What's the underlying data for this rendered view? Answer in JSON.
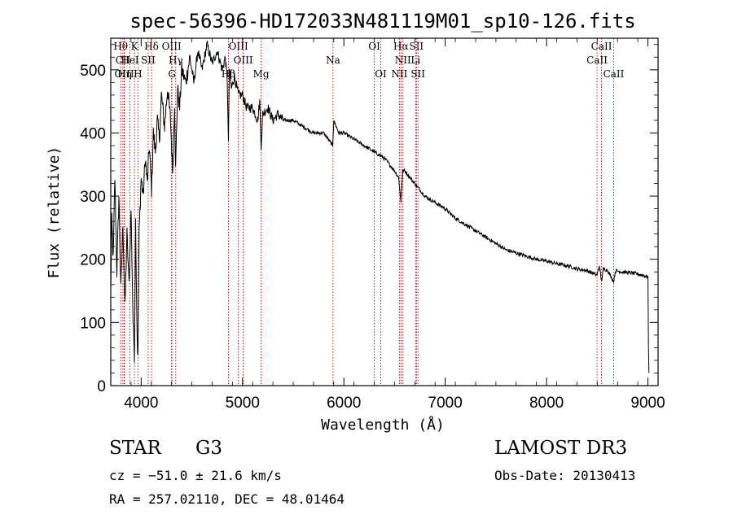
{
  "chart_data": {
    "type": "line",
    "title": "spec-56396-HD172033N481119M01_sp10-126.fits",
    "xlabel": "Wavelength (Å)",
    "ylabel": "Flux (relative)",
    "xlim": [
      3700,
      9100
    ],
    "ylim": [
      0,
      550
    ],
    "xticks": [
      4000,
      5000,
      6000,
      7000,
      8000,
      9000
    ],
    "yticks": [
      0,
      100,
      200,
      300,
      400,
      500
    ],
    "series": [
      {
        "name": "flux",
        "x": [
          3700,
          3710,
          3725,
          3740,
          3760,
          3780,
          3800,
          3820,
          3840,
          3860,
          3880,
          3900,
          3920,
          3933,
          3945,
          3960,
          3968,
          3980,
          4000,
          4020,
          4040,
          4060,
          4080,
          4102,
          4120,
          4140,
          4160,
          4180,
          4200,
          4230,
          4260,
          4290,
          4310,
          4330,
          4340,
          4360,
          4380,
          4400,
          4440,
          4480,
          4520,
          4560,
          4600,
          4650,
          4700,
          4750,
          4800,
          4830,
          4850,
          4861,
          4870,
          4890,
          4920,
          4960,
          5000,
          5040,
          5100,
          5150,
          5170,
          5183,
          5200,
          5250,
          5300,
          5350,
          5400,
          5500,
          5600,
          5700,
          5800,
          5890,
          5900,
          5950,
          6000,
          6100,
          6200,
          6300,
          6400,
          6500,
          6540,
          6563,
          6580,
          6600,
          6650,
          6700,
          6800,
          6900,
          7000,
          7100,
          7200,
          7300,
          7400,
          7500,
          7600,
          7700,
          7800,
          7900,
          8000,
          8100,
          8200,
          8300,
          8400,
          8498,
          8520,
          8542,
          8560,
          8600,
          8662,
          8680,
          8750,
          8850,
          8950,
          9000,
          9005,
          9010
        ],
        "y": [
          150,
          260,
          200,
          330,
          180,
          300,
          150,
          260,
          120,
          240,
          160,
          280,
          100,
          50,
          260,
          80,
          40,
          240,
          330,
          300,
          360,
          320,
          380,
          310,
          400,
          370,
          420,
          390,
          460,
          410,
          470,
          420,
          340,
          450,
          340,
          470,
          440,
          500,
          480,
          520,
          480,
          530,
          500,
          540,
          510,
          530,
          500,
          520,
          480,
          380,
          500,
          470,
          490,
          460,
          460,
          440,
          440,
          420,
          450,
          380,
          430,
          440,
          420,
          430,
          420,
          420,
          410,
          400,
          400,
          380,
          420,
          400,
          400,
          390,
          380,
          370,
          360,
          340,
          330,
          290,
          340,
          340,
          330,
          320,
          300,
          290,
          280,
          265,
          255,
          245,
          235,
          225,
          215,
          210,
          205,
          200,
          197,
          193,
          190,
          185,
          182,
          175,
          190,
          165,
          185,
          183,
          165,
          182,
          180,
          178,
          175,
          172,
          60,
          20
        ]
      }
    ],
    "line_markers": [
      {
        "label": "Hθ",
        "w": 3798,
        "row": 1
      },
      {
        "label": "CII",
        "w": 3820,
        "row": 2
      },
      {
        "label": "OIII",
        "w": 3833,
        "row": 3
      },
      {
        "label": "Hη",
        "w": 3836,
        "row": 3
      },
      {
        "label": "HeI",
        "w": 3889,
        "row": 2
      },
      {
        "label": "K",
        "w": 3934,
        "row": 1
      },
      {
        "label": "H",
        "w": 3968,
        "row": 3
      },
      {
        "label": "SII",
        "w": 4069,
        "row": 2
      },
      {
        "label": "Hδ",
        "w": 4102,
        "row": 1
      },
      {
        "label": "OIII",
        "w": 4300,
        "row": 1
      },
      {
        "label": "Hγ",
        "w": 4341,
        "row": 2
      },
      {
        "label": "G",
        "w": 4304,
        "row": 3
      },
      {
        "label": "Hβ",
        "w": 4861,
        "row": 3
      },
      {
        "label": "OIII",
        "w": 4959,
        "row": 1
      },
      {
        "label": "OIII",
        "w": 5007,
        "row": 2
      },
      {
        "label": "Mg",
        "w": 5183,
        "row": 3
      },
      {
        "label": "Na",
        "w": 5893,
        "row": 2
      },
      {
        "label": "OI",
        "w": 6300,
        "row": 1
      },
      {
        "label": "OI",
        "w": 6364,
        "row": 3
      },
      {
        "label": "Hα",
        "w": 6563,
        "row": 1
      },
      {
        "label": "NII",
        "w": 6583,
        "row": 2
      },
      {
        "label": "NII",
        "w": 6548,
        "row": 3
      },
      {
        "label": "SII",
        "w": 6716,
        "row": 1
      },
      {
        "label": "Li",
        "w": 6708,
        "row": 2
      },
      {
        "label": "SII",
        "w": 6731,
        "row": 3
      },
      {
        "label": "CaII",
        "w": 8542,
        "row": 1
      },
      {
        "label": "CaII",
        "w": 8498,
        "row": 2
      },
      {
        "label": "CaII",
        "w": 8662,
        "row": 3
      }
    ]
  },
  "info": {
    "object_class": "STAR",
    "subclass": "G3",
    "survey": "LAMOST DR3",
    "velocity": "cz = −51.0 ± 21.6 km/s",
    "obs_date": "Obs-Date: 20130413",
    "coords": "RA = 257.02110, DEC =  48.01464"
  }
}
